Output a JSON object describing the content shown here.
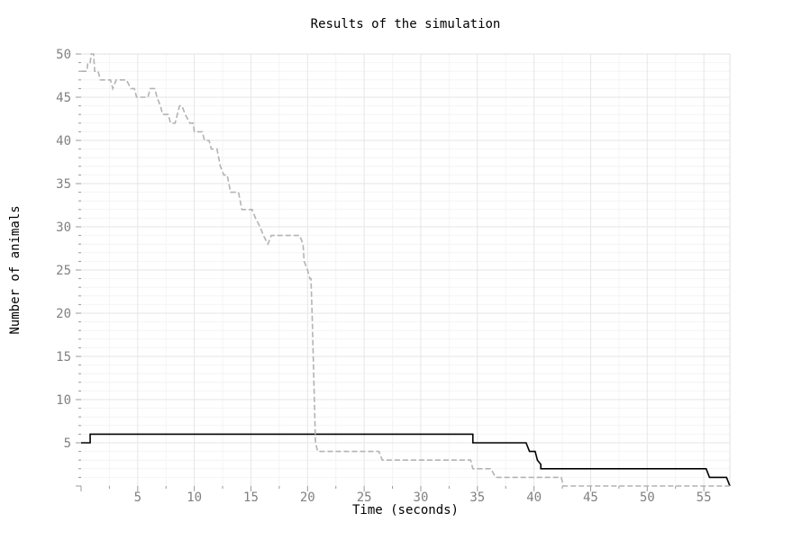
{
  "chart_data": {
    "type": "line",
    "title": "Results of the simulation",
    "xlabel": "Time (seconds)",
    "ylabel": "Number of animals",
    "xlim": [
      0,
      57.3
    ],
    "ylim": [
      0,
      50
    ],
    "x_ticks": [
      5,
      10,
      15,
      20,
      25,
      30,
      35,
      40,
      45,
      50,
      55
    ],
    "y_ticks": [
      5,
      10,
      15,
      20,
      25,
      30,
      35,
      40,
      45,
      50
    ],
    "x_tick_labels": [
      "5",
      "10",
      "15",
      "20",
      "25",
      "30",
      "35",
      "40",
      "45",
      "50",
      "55"
    ],
    "y_tick_labels": [
      "5",
      "10",
      "15",
      "20",
      "25",
      "30",
      "35",
      "40",
      "45",
      "50"
    ],
    "grid": true,
    "legend": "none",
    "series": [
      {
        "color": "#000000",
        "dash": "solid",
        "points": [
          [
            0,
            5
          ],
          [
            0.8,
            5
          ],
          [
            0.8,
            6
          ],
          [
            34.6,
            6
          ],
          [
            34.6,
            5
          ],
          [
            39.3,
            5
          ],
          [
            39.6,
            4
          ],
          [
            40.1,
            4
          ],
          [
            40.3,
            3
          ],
          [
            40.6,
            2.5
          ],
          [
            40.6,
            2
          ],
          [
            55.2,
            2
          ],
          [
            55.5,
            1
          ],
          [
            57.0,
            1
          ],
          [
            57.3,
            0
          ]
        ]
      },
      {
        "color": "#b3b3b3",
        "dash": "dashed",
        "points": [
          [
            0,
            48
          ],
          [
            0.5,
            48
          ],
          [
            0.6,
            49
          ],
          [
            0.8,
            49
          ],
          [
            0.9,
            50
          ],
          [
            1.1,
            50
          ],
          [
            1.2,
            48
          ],
          [
            1.5,
            48
          ],
          [
            1.7,
            47
          ],
          [
            2.6,
            47
          ],
          [
            2.8,
            46
          ],
          [
            3.1,
            47
          ],
          [
            4.0,
            47
          ],
          [
            4.4,
            46
          ],
          [
            4.7,
            46
          ],
          [
            4.9,
            45
          ],
          [
            5.9,
            45
          ],
          [
            6.1,
            46
          ],
          [
            6.5,
            46
          ],
          [
            6.7,
            45
          ],
          [
            7.0,
            44
          ],
          [
            7.2,
            43
          ],
          [
            7.7,
            43
          ],
          [
            7.9,
            42
          ],
          [
            8.3,
            42
          ],
          [
            8.7,
            44
          ],
          [
            8.9,
            44
          ],
          [
            9.2,
            43
          ],
          [
            9.6,
            42
          ],
          [
            9.9,
            42
          ],
          [
            10.0,
            41
          ],
          [
            10.7,
            41
          ],
          [
            10.9,
            40
          ],
          [
            11.3,
            40
          ],
          [
            11.5,
            39
          ],
          [
            12.0,
            39
          ],
          [
            12.3,
            37
          ],
          [
            12.6,
            36
          ],
          [
            12.9,
            36
          ],
          [
            13.2,
            34
          ],
          [
            13.9,
            34
          ],
          [
            14.2,
            32
          ],
          [
            15.1,
            32
          ],
          [
            15.4,
            31
          ],
          [
            15.8,
            30
          ],
          [
            16.1,
            29
          ],
          [
            16.5,
            28
          ],
          [
            16.8,
            29
          ],
          [
            19.3,
            29
          ],
          [
            19.6,
            28
          ],
          [
            19.7,
            26
          ],
          [
            20.0,
            25
          ],
          [
            20.2,
            24
          ],
          [
            20.3,
            24
          ],
          [
            20.4,
            20
          ],
          [
            20.5,
            15
          ],
          [
            20.6,
            10
          ],
          [
            20.7,
            5
          ],
          [
            20.9,
            4
          ],
          [
            26.3,
            4
          ],
          [
            26.6,
            3
          ],
          [
            34.4,
            3
          ],
          [
            34.6,
            2
          ],
          [
            36.2,
            2
          ],
          [
            36.6,
            1
          ],
          [
            42.4,
            1
          ],
          [
            42.6,
            0
          ],
          [
            57.3,
            0
          ]
        ]
      }
    ]
  }
}
